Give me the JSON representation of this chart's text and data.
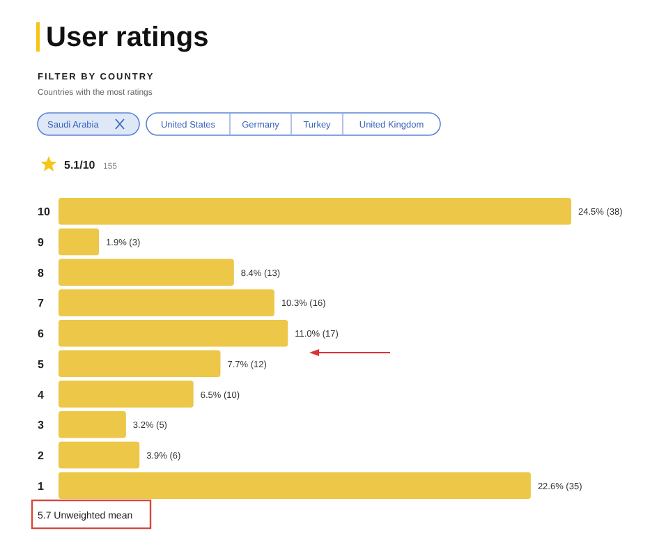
{
  "chart_data": {
    "type": "bar",
    "orientation": "horizontal",
    "title": "User ratings",
    "subtitle": "FILTER BY COUNTRY",
    "categories": [
      "10",
      "9",
      "8",
      "7",
      "6",
      "5",
      "4",
      "3",
      "2",
      "1"
    ],
    "values": [
      38,
      3,
      13,
      16,
      17,
      12,
      10,
      5,
      6,
      35
    ],
    "value_labels": [
      "24.5% (38)",
      "1.9% (3)",
      "8.4% (13)",
      "10.3% (16)",
      "11.0% (17)",
      "7.7% (12)",
      "6.5% (10)",
      "3.2% (5)",
      "3.9% (6)",
      "22.6% (35)"
    ],
    "color": "#ecc748",
    "annotations": [
      "Countries with the most ratings",
      "Saudi Arabia",
      "United States",
      "Germany",
      "Turkey",
      "United Kingdom",
      "5.1/10",
      "155",
      "5.7 Unweighted mean"
    ]
  }
}
